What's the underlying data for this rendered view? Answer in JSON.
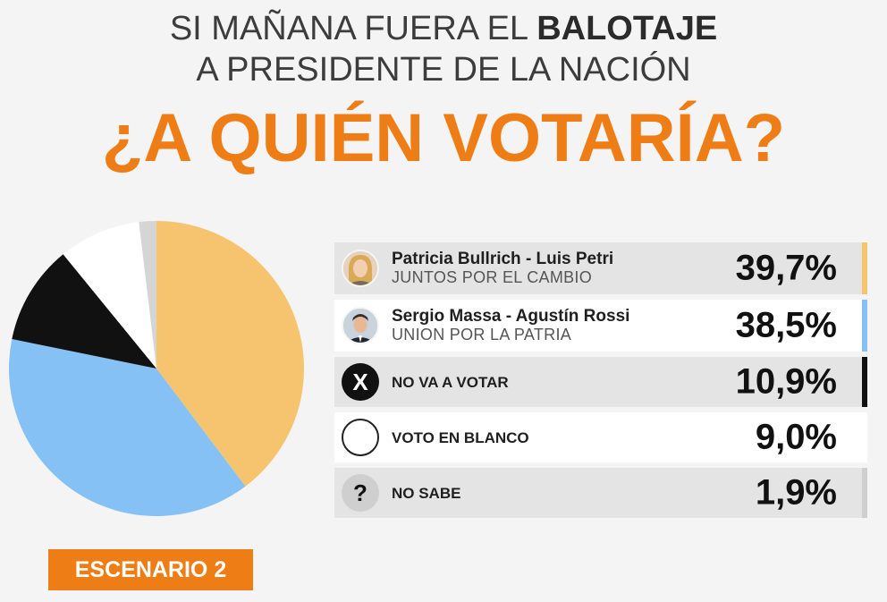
{
  "header": {
    "line1_prefix": "SI MAÑANA FUERA EL ",
    "line1_bold": "BALOTAJE",
    "line2": "A PRESIDENTE DE LA NACIÓN",
    "question": "¿A QUIÉN VOTARÍA?"
  },
  "scenario_label": "ESCENARIO 2",
  "chart_data": {
    "type": "pie",
    "start": "12 o'clock, clockwise",
    "slices": [
      {
        "label": "Patricia Bullrich - Luis Petri",
        "sublabel": "JUNTOS POR EL CAMBIO",
        "value": 39.7,
        "display": "39,7%",
        "color": "#f6c46e"
      },
      {
        "label": "Sergio Massa - Agustín Rossi",
        "sublabel": "UNION POR LA PATRIA",
        "value": 38.5,
        "display": "38,5%",
        "color": "#86c1f6"
      },
      {
        "label": "NO VA A VOTAR",
        "value": 10.9,
        "display": "10,9%",
        "color": "#111111"
      },
      {
        "label": "VOTO EN BLANCO",
        "value": 9.0,
        "display": "9,0%",
        "color": "#ffffff"
      },
      {
        "label": "NO SABE",
        "value": 1.9,
        "display": "1,9%",
        "color": "#d5d5d5"
      }
    ]
  },
  "legend_icons": {
    "x_symbol": "X",
    "question_symbol": "?"
  }
}
